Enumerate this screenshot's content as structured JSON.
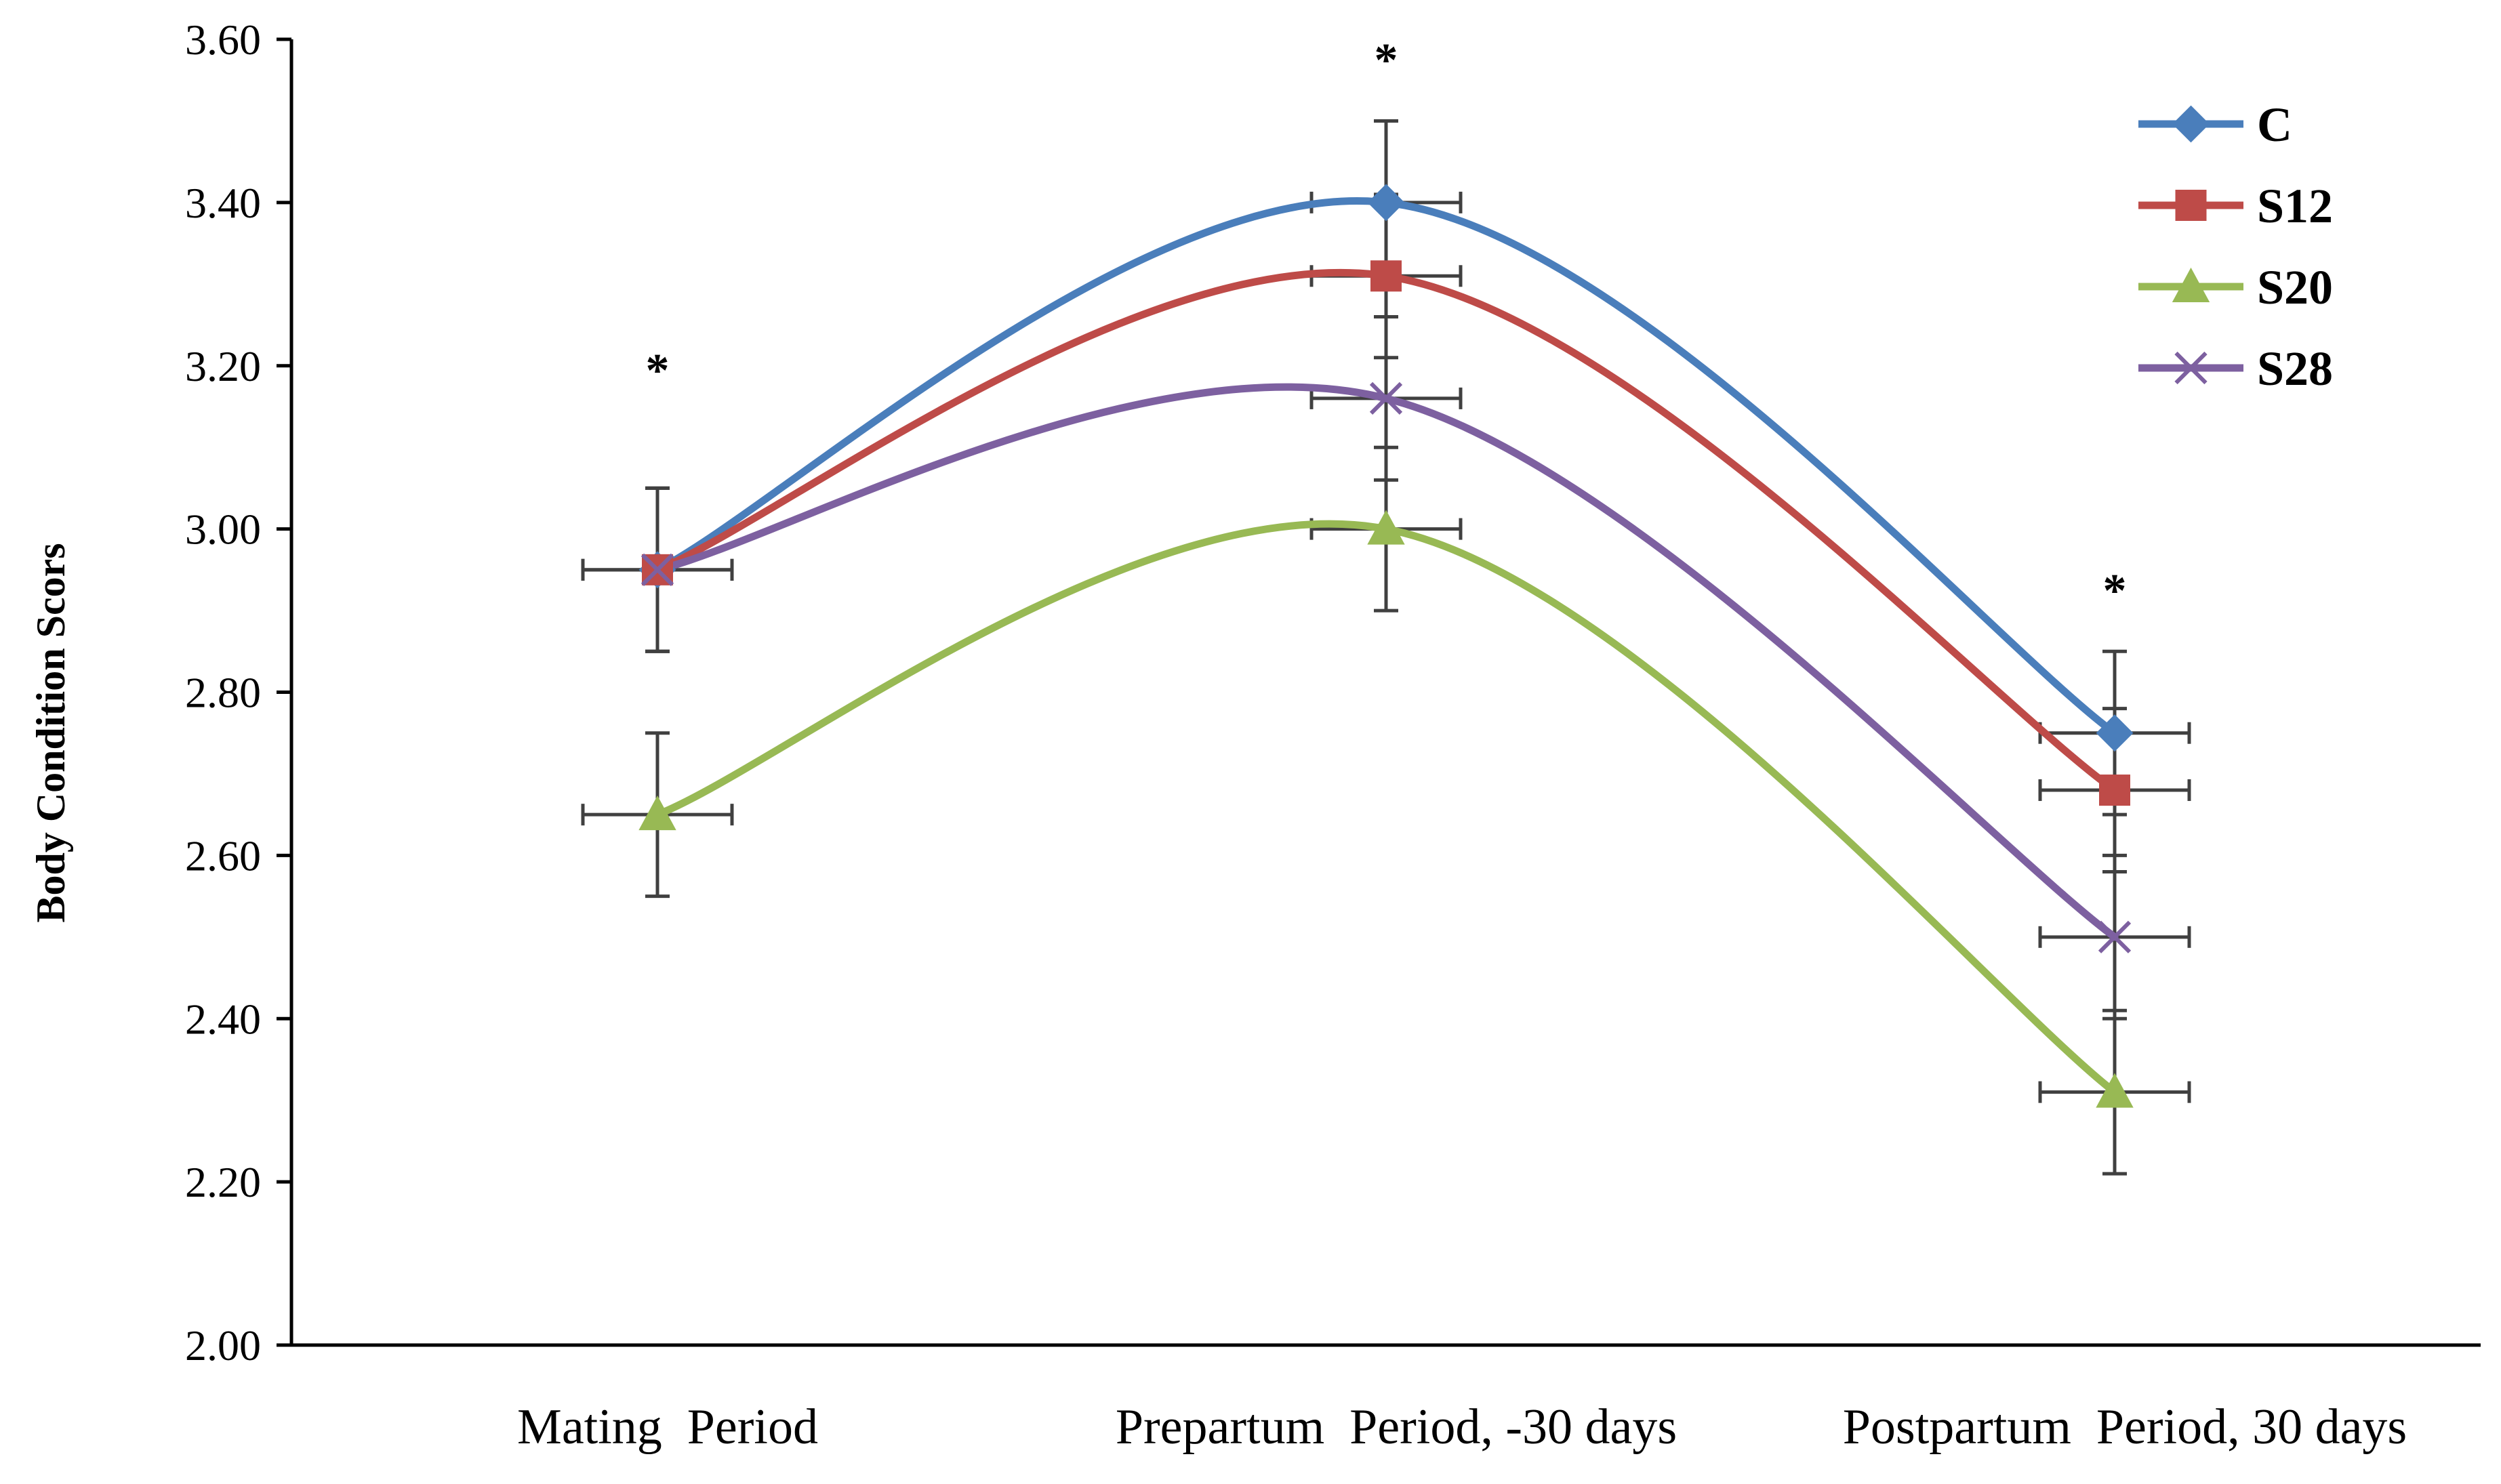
{
  "chart_data": {
    "type": "line",
    "title": "",
    "xlabel": "",
    "ylabel": "Body Condition Scors",
    "ylim": [
      2.0,
      3.6
    ],
    "yticks": [
      "2.00",
      "2.20",
      "2.40",
      "2.60",
      "2.80",
      "3.00",
      "3.20",
      "3.40",
      "3.60"
    ],
    "categories": [
      "Mating  Period",
      "Prepartum  Period, -30 days",
      "Postpartum  Period, 30 days"
    ],
    "grid": false,
    "legend_position": "top-right",
    "series": [
      {
        "name": "C",
        "color": "#4a7ebb",
        "marker": "diamond",
        "values": [
          2.95,
          3.4,
          2.75
        ],
        "errors": [
          0.1,
          0.1,
          0.1
        ]
      },
      {
        "name": "S12",
        "color": "#be4b48",
        "marker": "square",
        "values": [
          2.95,
          3.31,
          2.68
        ],
        "errors": [
          0.1,
          0.1,
          0.1
        ]
      },
      {
        "name": "S20",
        "color": "#98b954",
        "marker": "triangle",
        "values": [
          2.65,
          3.0,
          2.31
        ],
        "errors": [
          0.1,
          0.1,
          0.1
        ]
      },
      {
        "name": "S28",
        "color": "#7d60a0",
        "marker": "x",
        "values": [
          2.95,
          3.16,
          2.5
        ],
        "errors": [
          0.1,
          0.1,
          0.1
        ]
      }
    ],
    "annotations": [
      {
        "text": "*",
        "category_index": 0,
        "y": 3.2
      },
      {
        "text": "*",
        "category_index": 1,
        "y": 3.58
      },
      {
        "text": "*",
        "category_index": 2,
        "y": 2.93
      }
    ]
  }
}
